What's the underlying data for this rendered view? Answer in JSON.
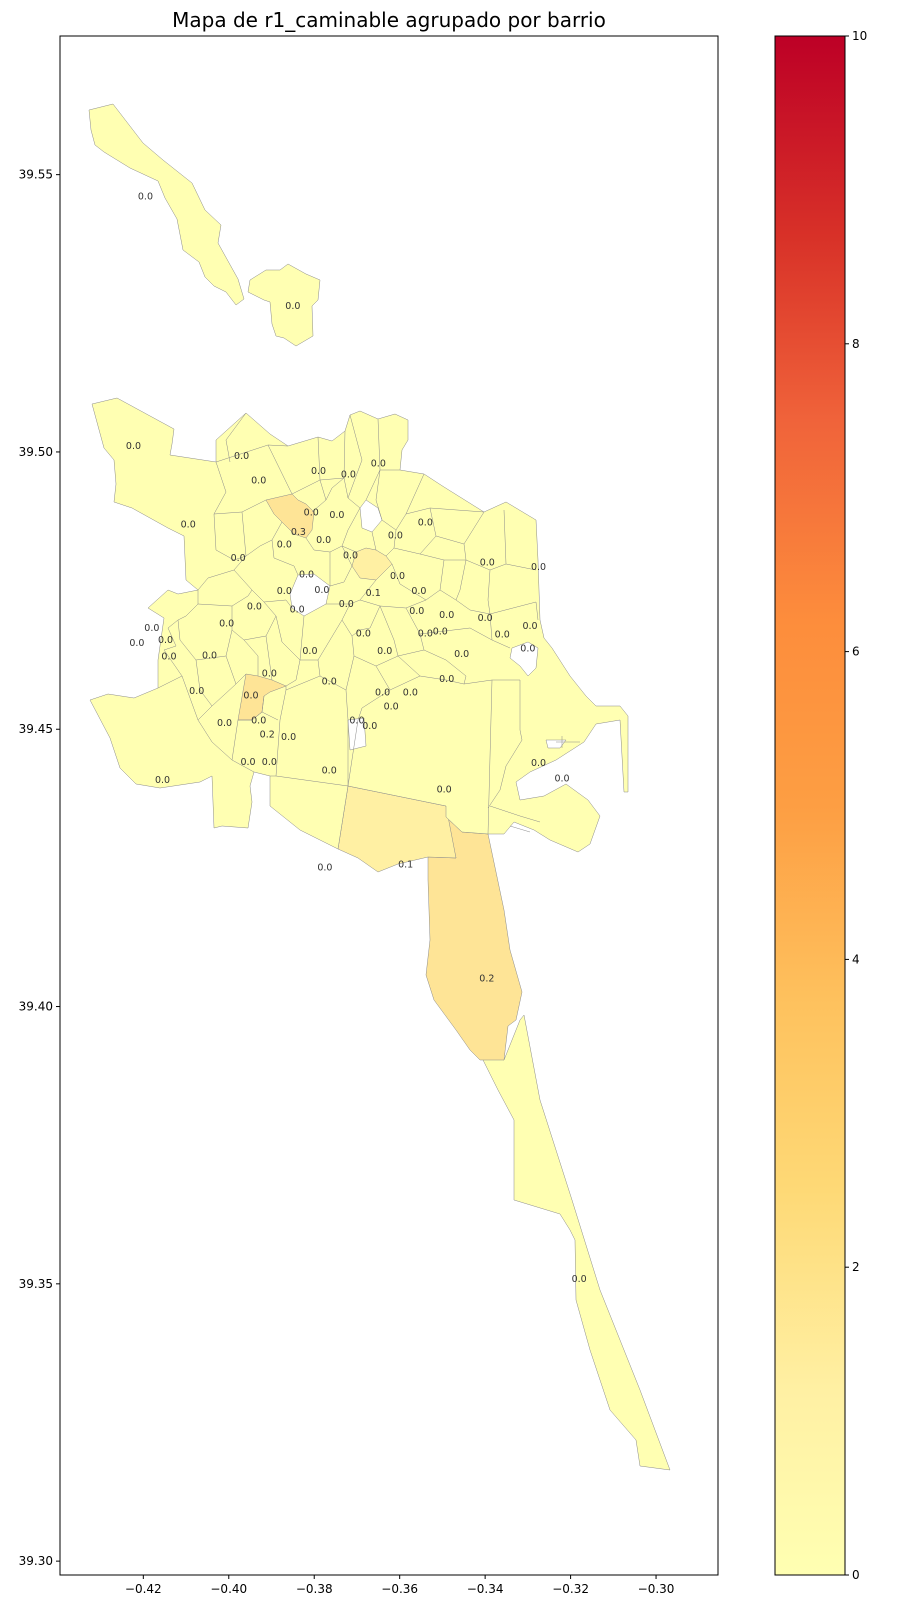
{
  "chart_data": {
    "type": "choropleth",
    "title": "Mapa de r1_caminable agrupado por barrio",
    "x_ticks": [
      "−0.42",
      "−0.40",
      "−0.38",
      "−0.36",
      "−0.34",
      "−0.32",
      "−0.30"
    ],
    "y_ticks": [
      "39.30",
      "39.35",
      "39.40",
      "39.45",
      "39.50",
      "39.55"
    ],
    "xlim": [
      -0.4395,
      -0.2855
    ],
    "ylim": [
      39.2975,
      39.575
    ],
    "colorbar": {
      "min": 0,
      "max": 10,
      "ticks": [
        "0",
        "2",
        "4",
        "6",
        "8",
        "10"
      ],
      "colormap": "YlOrRd",
      "color_low": "#ffffb2",
      "color_high": "#bd0026"
    },
    "regions": [
      {
        "x": -0.4195,
        "y": 39.546,
        "value": "0.0"
      },
      {
        "x": -0.385,
        "y": 39.5262,
        "value": "0.0"
      },
      {
        "x": -0.4223,
        "y": 39.501,
        "value": "0.0"
      },
      {
        "x": -0.397,
        "y": 39.4992,
        "value": "0.0"
      },
      {
        "x": -0.393,
        "y": 39.4948,
        "value": "0.0"
      },
      {
        "x": -0.379,
        "y": 39.4965,
        "value": "0.0"
      },
      {
        "x": -0.372,
        "y": 39.4958,
        "value": "0.0"
      },
      {
        "x": -0.365,
        "y": 39.4978,
        "value": "0.0"
      },
      {
        "x": -0.4095,
        "y": 39.4868,
        "value": "0.0"
      },
      {
        "x": -0.3837,
        "y": 39.4855,
        "value": "0.3"
      },
      {
        "x": -0.3807,
        "y": 39.489,
        "value": "0.0"
      },
      {
        "x": -0.3747,
        "y": 39.4885,
        "value": "0.0"
      },
      {
        "x": -0.354,
        "y": 39.4872,
        "value": "0.0"
      },
      {
        "x": -0.387,
        "y": 39.4832,
        "value": "0.0"
      },
      {
        "x": -0.3778,
        "y": 39.484,
        "value": "0.0"
      },
      {
        "x": -0.361,
        "y": 39.4848,
        "value": "0.0"
      },
      {
        "x": -0.3978,
        "y": 39.4808,
        "value": "0.0"
      },
      {
        "x": -0.3715,
        "y": 39.4812,
        "value": "0.0"
      },
      {
        "x": -0.3395,
        "y": 39.48,
        "value": "0.0"
      },
      {
        "x": -0.3275,
        "y": 39.4792,
        "value": "0.0"
      },
      {
        "x": -0.3818,
        "y": 39.4778,
        "value": "0.0"
      },
      {
        "x": -0.3605,
        "y": 39.4775,
        "value": "0.0"
      },
      {
        "x": -0.387,
        "y": 39.4748,
        "value": "0.0"
      },
      {
        "x": -0.3782,
        "y": 39.475,
        "value": "0.0"
      },
      {
        "x": -0.3662,
        "y": 39.4745,
        "value": "0.1"
      },
      {
        "x": -0.3555,
        "y": 39.4748,
        "value": "0.0"
      },
      {
        "x": -0.394,
        "y": 39.472,
        "value": "0.0"
      },
      {
        "x": -0.3725,
        "y": 39.4725,
        "value": "0.0"
      },
      {
        "x": -0.384,
        "y": 39.4715,
        "value": "0.0"
      },
      {
        "x": -0.356,
        "y": 39.4712,
        "value": "0.0"
      },
      {
        "x": -0.349,
        "y": 39.4705,
        "value": "0.0"
      },
      {
        "x": -0.34,
        "y": 39.47,
        "value": "0.0"
      },
      {
        "x": -0.4005,
        "y": 39.469,
        "value": "0.0"
      },
      {
        "x": -0.418,
        "y": 39.4682,
        "value": "0.0"
      },
      {
        "x": -0.3295,
        "y": 39.4685,
        "value": "0.0"
      },
      {
        "x": -0.3505,
        "y": 39.4675,
        "value": "0.0"
      },
      {
        "x": -0.4148,
        "y": 39.466,
        "value": "0.0"
      },
      {
        "x": -0.3685,
        "y": 39.4672,
        "value": "0.0"
      },
      {
        "x": -0.354,
        "y": 39.4672,
        "value": "0.0"
      },
      {
        "x": -0.4215,
        "y": 39.4655,
        "value": "0.0"
      },
      {
        "x": -0.336,
        "y": 39.467,
        "value": "0.0"
      },
      {
        "x": -0.414,
        "y": 39.463,
        "value": "0.0"
      },
      {
        "x": -0.4045,
        "y": 39.4632,
        "value": "0.0"
      },
      {
        "x": -0.381,
        "y": 39.464,
        "value": "0.0"
      },
      {
        "x": -0.3635,
        "y": 39.464,
        "value": "0.0"
      },
      {
        "x": -0.3455,
        "y": 39.4635,
        "value": "0.0"
      },
      {
        "x": -0.33,
        "y": 39.4645,
        "value": "0.0"
      },
      {
        "x": -0.3905,
        "y": 39.46,
        "value": "0.0"
      },
      {
        "x": -0.3765,
        "y": 39.4585,
        "value": "0.0"
      },
      {
        "x": -0.349,
        "y": 39.459,
        "value": "0.0"
      },
      {
        "x": -0.4075,
        "y": 39.4568,
        "value": "0.0"
      },
      {
        "x": -0.3948,
        "y": 39.456,
        "value": "0.0"
      },
      {
        "x": -0.364,
        "y": 39.4565,
        "value": "0.0"
      },
      {
        "x": -0.3575,
        "y": 39.4565,
        "value": "0.0"
      },
      {
        "x": -0.362,
        "y": 39.454,
        "value": "0.0"
      },
      {
        "x": -0.367,
        "y": 39.4505,
        "value": "0.0"
      },
      {
        "x": -0.37,
        "y": 39.4515,
        "value": "0.0"
      },
      {
        "x": -0.401,
        "y": 39.451,
        "value": "0.0"
      },
      {
        "x": -0.393,
        "y": 39.4515,
        "value": "0.0"
      },
      {
        "x": -0.391,
        "y": 39.449,
        "value": "0.2"
      },
      {
        "x": -0.386,
        "y": 39.4485,
        "value": "0.0"
      },
      {
        "x": -0.3275,
        "y": 39.4438,
        "value": "0.0"
      },
      {
        "x": -0.322,
        "y": 39.441,
        "value": "0.0"
      },
      {
        "x": -0.4155,
        "y": 39.4408,
        "value": "0.0"
      },
      {
        "x": -0.3955,
        "y": 39.444,
        "value": "0.0"
      },
      {
        "x": -0.3905,
        "y": 39.444,
        "value": "0.0"
      },
      {
        "x": -0.3765,
        "y": 39.4425,
        "value": "0.0"
      },
      {
        "x": -0.3496,
        "y": 39.439,
        "value": "0.0"
      },
      {
        "x": -0.3775,
        "y": 39.425,
        "value": "0.0"
      },
      {
        "x": -0.3586,
        "y": 39.4255,
        "value": "0.1"
      },
      {
        "x": -0.3396,
        "y": 39.405,
        "value": "0.2"
      },
      {
        "x": -0.318,
        "y": 39.3508,
        "value": "0.0"
      }
    ]
  }
}
